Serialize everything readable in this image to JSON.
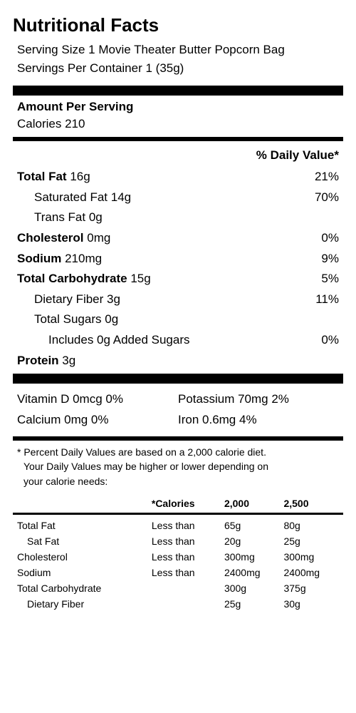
{
  "title": "Nutritional Facts",
  "serving_size": "Serving Size 1 Movie Theater Butter Popcorn Bag",
  "servings_per": "Servings Per Container 1 (35g)",
  "amount_header": "Amount Per Serving",
  "calories_label": "Calories",
  "calories_value": "210",
  "dv_header": "% Daily Value*",
  "nutrients": {
    "total_fat": {
      "label": "Total Fat",
      "amount": "16g",
      "dv": "21%"
    },
    "sat_fat": {
      "label": "Saturated Fat",
      "amount": "14g",
      "dv": "70%"
    },
    "trans_fat": {
      "label": "Trans Fat",
      "amount": "0g"
    },
    "cholesterol": {
      "label": "Cholesterol",
      "amount": "0mg",
      "dv": "0%"
    },
    "sodium": {
      "label": "Sodium",
      "amount": "210mg",
      "dv": "9%"
    },
    "total_carb": {
      "label": "Total Carbohydrate",
      "amount": "15g",
      "dv": "5%"
    },
    "fiber": {
      "label": "Dietary Fiber",
      "amount": "3g",
      "dv": "11%"
    },
    "sugars": {
      "label": "Total Sugars",
      "amount": "0g"
    },
    "added_sugars": {
      "label": "Includes 0g Added Sugars",
      "dv": "0%"
    },
    "protein": {
      "label": "Protein",
      "amount": "3g"
    }
  },
  "vitamins": {
    "vitd": "Vitamin D 0mcg 0%",
    "potassium": "Potassium 70mg 2%",
    "calcium": "Calcium 0mg 0%",
    "iron": "Iron 0.6mg 4%"
  },
  "footnote1": "* Percent Daily Values are based on a 2,000 calorie diet.",
  "footnote2": "Your Daily Values may be higher or lower depending on",
  "footnote3": "your calorie needs:",
  "guide": {
    "header": {
      "c1": "",
      "c2": "*Calories",
      "c3": "2,000",
      "c4": "2,500"
    },
    "rows": [
      {
        "name": "Total Fat",
        "op": "Less than",
        "v1": "65g",
        "v2": "80g",
        "indent": false
      },
      {
        "name": "Sat Fat",
        "op": "Less than",
        "v1": "20g",
        "v2": "25g",
        "indent": true
      },
      {
        "name": "Cholesterol",
        "op": "Less than",
        "v1": "300mg",
        "v2": "300mg",
        "indent": false
      },
      {
        "name": "Sodium",
        "op": "Less than",
        "v1": "2400mg",
        "v2": "2400mg",
        "indent": false
      },
      {
        "name": "Total Carbohydrate",
        "op": "",
        "v1": "300g",
        "v2": "375g",
        "indent": false
      },
      {
        "name": "Dietary Fiber",
        "op": "",
        "v1": "25g",
        "v2": "30g",
        "indent": true
      }
    ]
  },
  "colors": {
    "text": "#000000",
    "bg": "#ffffff"
  }
}
